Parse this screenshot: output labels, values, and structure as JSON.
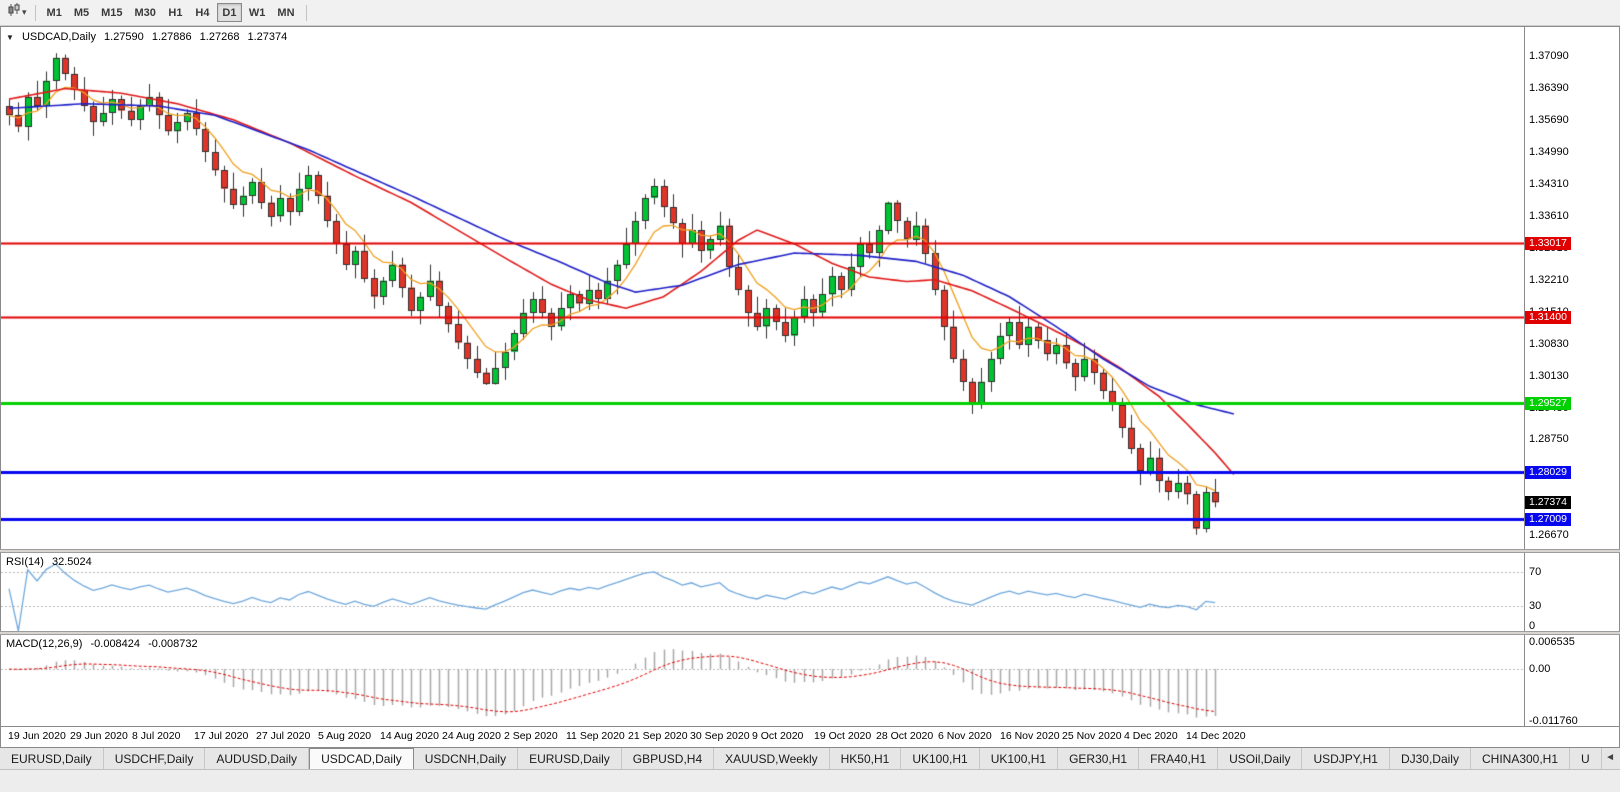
{
  "toolbar": {
    "timeframes": [
      "M1",
      "M5",
      "M15",
      "M30",
      "H1",
      "H4",
      "D1",
      "W1",
      "MN"
    ],
    "active_timeframe": "D1"
  },
  "chart": {
    "type": "candlestick",
    "symbol_period": "USDCAD,Daily",
    "open": "1.27590",
    "high": "1.27886",
    "low": "1.27268",
    "close": "1.27374",
    "price_range": {
      "top": 1.3772,
      "bottom": 1.2636
    },
    "y_axis_labels": [
      "1.37090",
      "1.36390",
      "1.35690",
      "1.34990",
      "1.34310",
      "1.33610",
      "1.32910",
      "1.32210",
      "1.31510",
      "1.30830",
      "1.30130",
      "1.29430",
      "1.28750",
      "1.28050",
      "1.26670"
    ],
    "x_axis_labels": [
      "19 Jun 2020",
      "29 Jun 2020",
      "8 Jul 2020",
      "17 Jul 2020",
      "27 Jul 2020",
      "5 Aug 2020",
      "14 Aug 2020",
      "24 Aug 2020",
      "2 Sep 2020",
      "11 Sep 2020",
      "21 Sep 2020",
      "30 Sep 2020",
      "9 Oct 2020",
      "19 Oct 2020",
      "28 Oct 2020",
      "6 Nov 2020",
      "16 Nov 2020",
      "25 Nov 2020",
      "4 Dec 2020",
      "14 Dec 2020"
    ],
    "hlines": [
      {
        "price": 1.33017,
        "label": "1.33017",
        "color": "#e00000",
        "width": 2
      },
      {
        "price": 1.314,
        "label": "1.31400",
        "color": "#e00000",
        "width": 2
      },
      {
        "price": 1.29527,
        "label": "1.29527",
        "color": "#00d000",
        "width": 3
      },
      {
        "price": 1.28029,
        "label": "1.28029",
        "color": "#0808f0",
        "width": 3
      },
      {
        "price": 1.27009,
        "label": "1.27009",
        "color": "#0808f0",
        "width": 3
      }
    ],
    "ma_fast_period": 7,
    "ma_medium_points": [
      [
        0,
        1.3615
      ],
      [
        6,
        1.3638
      ],
      [
        12,
        1.3628
      ],
      [
        18,
        1.3605
      ],
      [
        24,
        1.357
      ],
      [
        30,
        1.352
      ],
      [
        37,
        1.3448
      ],
      [
        43,
        1.339
      ],
      [
        48,
        1.333
      ],
      [
        53,
        1.327
      ],
      [
        58,
        1.3212
      ],
      [
        62,
        1.3178
      ],
      [
        66,
        1.316
      ],
      [
        70,
        1.3185
      ],
      [
        74,
        1.324
      ],
      [
        78,
        1.3308
      ],
      [
        80,
        1.333
      ],
      [
        84,
        1.33
      ],
      [
        88,
        1.3258
      ],
      [
        92,
        1.3228
      ],
      [
        96,
        1.3218
      ],
      [
        99,
        1.3222
      ],
      [
        103,
        1.3198
      ],
      [
        107,
        1.316
      ],
      [
        111,
        1.312
      ],
      [
        115,
        1.3078
      ],
      [
        119,
        1.3028
      ],
      [
        123,
        1.2968
      ],
      [
        126,
        1.2908
      ],
      [
        129,
        1.2845
      ],
      [
        131,
        1.2798
      ]
    ],
    "ma_slow_points": [
      [
        0,
        1.3595
      ],
      [
        8,
        1.3605
      ],
      [
        16,
        1.36
      ],
      [
        22,
        1.358
      ],
      [
        32,
        1.3505
      ],
      [
        43,
        1.3405
      ],
      [
        53,
        1.331
      ],
      [
        59,
        1.326
      ],
      [
        64,
        1.3215
      ],
      [
        67,
        1.3195
      ],
      [
        72,
        1.321
      ],
      [
        78,
        1.3255
      ],
      [
        84,
        1.328
      ],
      [
        91,
        1.3275
      ],
      [
        97,
        1.3262
      ],
      [
        102,
        1.3232
      ],
      [
        107,
        1.3185
      ],
      [
        112,
        1.312
      ],
      [
        117,
        1.305
      ],
      [
        122,
        1.299
      ],
      [
        127,
        1.295
      ],
      [
        131,
        1.293
      ]
    ],
    "candles": [
      [
        1.36,
        1.3615,
        1.3558,
        1.358
      ],
      [
        1.358,
        1.3608,
        1.3543,
        1.3555
      ],
      [
        1.3555,
        1.363,
        1.3525,
        1.362
      ],
      [
        1.362,
        1.3655,
        1.3591,
        1.36
      ],
      [
        1.36,
        1.3675,
        1.3574,
        1.3655
      ],
      [
        1.3655,
        1.3715,
        1.3637,
        1.3705
      ],
      [
        1.3705,
        1.3712,
        1.3656,
        1.367
      ],
      [
        1.367,
        1.3685,
        1.3613,
        1.3635
      ],
      [
        1.3635,
        1.3663,
        1.3588,
        1.36
      ],
      [
        1.36,
        1.361,
        1.3535,
        1.3565
      ],
      [
        1.3565,
        1.362,
        1.3556,
        1.3585
      ],
      [
        1.3585,
        1.3635,
        1.3559,
        1.3615
      ],
      [
        1.3615,
        1.3623,
        1.3572,
        1.359
      ],
      [
        1.359,
        1.362,
        1.3556,
        1.357
      ],
      [
        1.357,
        1.3615,
        1.3548,
        1.36
      ],
      [
        1.36,
        1.3648,
        1.3588,
        1.362
      ],
      [
        1.362,
        1.363,
        1.355,
        1.358
      ],
      [
        1.358,
        1.3615,
        1.3536,
        1.3545
      ],
      [
        1.3545,
        1.3585,
        1.3519,
        1.3565
      ],
      [
        1.3565,
        1.3593,
        1.3547,
        1.3585
      ],
      [
        1.3585,
        1.3615,
        1.3536,
        1.355
      ],
      [
        1.355,
        1.3565,
        1.3478,
        1.35
      ],
      [
        1.35,
        1.3528,
        1.3448,
        1.346
      ],
      [
        1.346,
        1.347,
        1.339,
        1.342
      ],
      [
        1.342,
        1.3455,
        1.3376,
        1.3385
      ],
      [
        1.3385,
        1.3425,
        1.3359,
        1.3405
      ],
      [
        1.3405,
        1.3443,
        1.3387,
        1.3435
      ],
      [
        1.3435,
        1.3465,
        1.3376,
        1.339
      ],
      [
        1.339,
        1.3405,
        1.3338,
        1.336
      ],
      [
        1.336,
        1.3428,
        1.3348,
        1.34
      ],
      [
        1.34,
        1.341,
        1.334,
        1.337
      ],
      [
        1.337,
        1.3455,
        1.3361,
        1.342
      ],
      [
        1.342,
        1.347,
        1.3394,
        1.345
      ],
      [
        1.345,
        1.3458,
        1.3387,
        1.3405
      ],
      [
        1.3405,
        1.3435,
        1.3336,
        1.335
      ],
      [
        1.335,
        1.3365,
        1.3278,
        1.33
      ],
      [
        1.33,
        1.3328,
        1.3243,
        1.3255
      ],
      [
        1.3255,
        1.3295,
        1.3225,
        1.3285
      ],
      [
        1.3285,
        1.332,
        1.3216,
        1.3225
      ],
      [
        1.3225,
        1.3245,
        1.3159,
        1.3185
      ],
      [
        1.3185,
        1.3228,
        1.3167,
        1.322
      ],
      [
        1.322,
        1.3285,
        1.3206,
        1.3255
      ],
      [
        1.3255,
        1.327,
        1.3183,
        1.3205
      ],
      [
        1.3205,
        1.3233,
        1.3143,
        1.3155
      ],
      [
        1.3155,
        1.3195,
        1.3125,
        1.3185
      ],
      [
        1.3185,
        1.3255,
        1.3176,
        1.322
      ],
      [
        1.322,
        1.324,
        1.3139,
        1.3165
      ],
      [
        1.3165,
        1.3173,
        1.3107,
        1.3125
      ],
      [
        1.3125,
        1.3155,
        1.3071,
        1.3085
      ],
      [
        1.3085,
        1.31,
        1.3028,
        1.305
      ],
      [
        1.305,
        1.3078,
        1.3008,
        1.302
      ],
      [
        1.302,
        1.303,
        1.2993,
        1.2995
      ],
      [
        1.2995,
        1.3065,
        1.2994,
        1.303
      ],
      [
        1.303,
        1.3085,
        1.3004,
        1.3065
      ],
      [
        1.3065,
        1.3113,
        1.3047,
        1.3105
      ],
      [
        1.3105,
        1.318,
        1.3091,
        1.315
      ],
      [
        1.315,
        1.3195,
        1.3128,
        1.318
      ],
      [
        1.318,
        1.3208,
        1.3138,
        1.315
      ],
      [
        1.315,
        1.316,
        1.309,
        1.312
      ],
      [
        1.312,
        1.3195,
        1.3111,
        1.316
      ],
      [
        1.316,
        1.321,
        1.3134,
        1.319
      ],
      [
        1.319,
        1.3198,
        1.3152,
        1.317
      ],
      [
        1.317,
        1.323,
        1.3156,
        1.32
      ],
      [
        1.32,
        1.3215,
        1.3158,
        1.318
      ],
      [
        1.318,
        1.3248,
        1.3168,
        1.322
      ],
      [
        1.322,
        1.3265,
        1.319,
        1.3255
      ],
      [
        1.3255,
        1.3335,
        1.3246,
        1.33
      ],
      [
        1.33,
        1.337,
        1.3274,
        1.335
      ],
      [
        1.335,
        1.3408,
        1.3332,
        1.34
      ],
      [
        1.34,
        1.3442,
        1.3386,
        1.3425
      ],
      [
        1.3425,
        1.344,
        1.3358,
        1.338
      ],
      [
        1.338,
        1.3408,
        1.3333,
        1.3345
      ],
      [
        1.3345,
        1.3355,
        1.327,
        1.33
      ],
      [
        1.33,
        1.3365,
        1.3291,
        1.333
      ],
      [
        1.333,
        1.335,
        1.3259,
        1.3285
      ],
      [
        1.3285,
        1.3318,
        1.3267,
        1.331
      ],
      [
        1.331,
        1.337,
        1.3296,
        1.334
      ],
      [
        1.334,
        1.3355,
        1.3228,
        1.325
      ],
      [
        1.325,
        1.3278,
        1.3188,
        1.32
      ],
      [
        1.32,
        1.321,
        1.312,
        1.315
      ],
      [
        1.315,
        1.3185,
        1.3111,
        1.312
      ],
      [
        1.312,
        1.318,
        1.3094,
        1.316
      ],
      [
        1.316,
        1.3168,
        1.3112,
        1.313
      ],
      [
        1.313,
        1.316,
        1.3086,
        1.31
      ],
      [
        1.31,
        1.3155,
        1.3078,
        1.314
      ],
      [
        1.314,
        1.3208,
        1.3128,
        1.318
      ],
      [
        1.318,
        1.319,
        1.312,
        1.315
      ],
      [
        1.315,
        1.3225,
        1.3141,
        1.319
      ],
      [
        1.319,
        1.325,
        1.3164,
        1.323
      ],
      [
        1.323,
        1.3238,
        1.3182,
        1.32
      ],
      [
        1.32,
        1.328,
        1.3186,
        1.325
      ],
      [
        1.325,
        1.3315,
        1.3228,
        1.33
      ],
      [
        1.33,
        1.3328,
        1.3268,
        1.328
      ],
      [
        1.328,
        1.334,
        1.325,
        1.333
      ],
      [
        1.333,
        1.3392,
        1.3321,
        1.339
      ],
      [
        1.339,
        1.3395,
        1.3324,
        1.335
      ],
      [
        1.335,
        1.3358,
        1.3292,
        1.331
      ],
      [
        1.331,
        1.337,
        1.3296,
        1.334
      ],
      [
        1.334,
        1.3355,
        1.3258,
        1.328
      ],
      [
        1.328,
        1.3308,
        1.3188,
        1.32
      ],
      [
        1.32,
        1.321,
        1.309,
        1.312
      ],
      [
        1.312,
        1.3155,
        1.3041,
        1.305
      ],
      [
        1.305,
        1.307,
        1.298,
        1.3
      ],
      [
        1.3,
        1.3008,
        1.293,
        1.2955
      ],
      [
        1.2955,
        1.303,
        1.2941,
        1.3
      ],
      [
        1.3,
        1.3065,
        1.2978,
        1.305
      ],
      [
        1.305,
        1.3128,
        1.3038,
        1.31
      ],
      [
        1.31,
        1.314,
        1.307,
        1.313
      ],
      [
        1.313,
        1.3165,
        1.3071,
        1.308
      ],
      [
        1.308,
        1.314,
        1.3054,
        1.312
      ],
      [
        1.312,
        1.3128,
        1.3072,
        1.309
      ],
      [
        1.309,
        1.312,
        1.3046,
        1.306
      ],
      [
        1.306,
        1.3095,
        1.3038,
        1.308
      ],
      [
        1.308,
        1.3108,
        1.3028,
        1.304
      ],
      [
        1.304,
        1.305,
        1.298,
        1.301
      ],
      [
        1.301,
        1.3085,
        1.3001,
        1.305
      ],
      [
        1.305,
        1.307,
        1.2994,
        1.302
      ],
      [
        1.302,
        1.3028,
        1.2962,
        1.298
      ],
      [
        1.298,
        1.301,
        1.2936,
        1.295
      ],
      [
        1.295,
        1.2965,
        1.2878,
        1.29
      ],
      [
        1.29,
        1.2928,
        1.2843,
        1.2855
      ],
      [
        1.2855,
        1.2865,
        1.2775,
        1.2805
      ],
      [
        1.2805,
        1.287,
        1.2796,
        1.2835
      ],
      [
        1.2835,
        1.2855,
        1.2759,
        1.2785
      ],
      [
        1.2785,
        1.2793,
        1.2742,
        1.276
      ],
      [
        1.276,
        1.281,
        1.2746,
        1.278
      ],
      [
        1.278,
        1.2795,
        1.2733,
        1.2755
      ],
      [
        1.2755,
        1.2762,
        1.2667,
        1.268
      ],
      [
        1.268,
        1.2772,
        1.2672,
        1.276
      ],
      [
        1.2759,
        1.27886,
        1.27268,
        1.27374
      ]
    ]
  },
  "rsi": {
    "name": "RSI(14)",
    "value": "32.5024",
    "levels": [
      {
        "label": "70",
        "value": 70
      },
      {
        "label": "30",
        "value": 30
      },
      {
        "label": "0",
        "value": 0
      }
    ],
    "range": [
      0,
      92
    ]
  },
  "macd": {
    "name": "MACD(12,26,9)",
    "value_main": "-0.008424",
    "value_signal": "-0.008732",
    "axis": [
      {
        "label": "0.006535",
        "value": 0.006535
      },
      {
        "label": "0.00",
        "value": 0
      },
      {
        "label": "-0.011760",
        "value": -0.01176
      }
    ],
    "range": [
      0.0075,
      -0.0125
    ]
  },
  "tabs": {
    "items": [
      "EURUSD,Daily",
      "USDCHF,Daily",
      "AUDUSD,Daily",
      "USDCAD,Daily",
      "USDCNH,Daily",
      "EURUSD,Daily",
      "GBPUSD,H4",
      "XAUUSD,Weekly",
      "HK50,H1",
      "UK100,H1",
      "UK100,H1",
      "GER30,H1",
      "FRA40,H1",
      "USOil,Daily",
      "USDJPY,H1",
      "DJ30,Daily",
      "CHINA300,H1",
      "U"
    ],
    "selected_index": 3,
    "scroll_icon": "◄"
  },
  "colors": {
    "up": "#00c432",
    "down": "#e03428",
    "candle_outline": "#303030",
    "ma_fast": "#efa020",
    "ma_medium": "#e01818",
    "ma_slow": "#2020c8",
    "rsi_line": "#6fa8dc",
    "macd_hist": "#a8a8a8",
    "macd_signal": "#e00000",
    "level_line": "#b8b8b8",
    "current_tag": "#000000"
  }
}
